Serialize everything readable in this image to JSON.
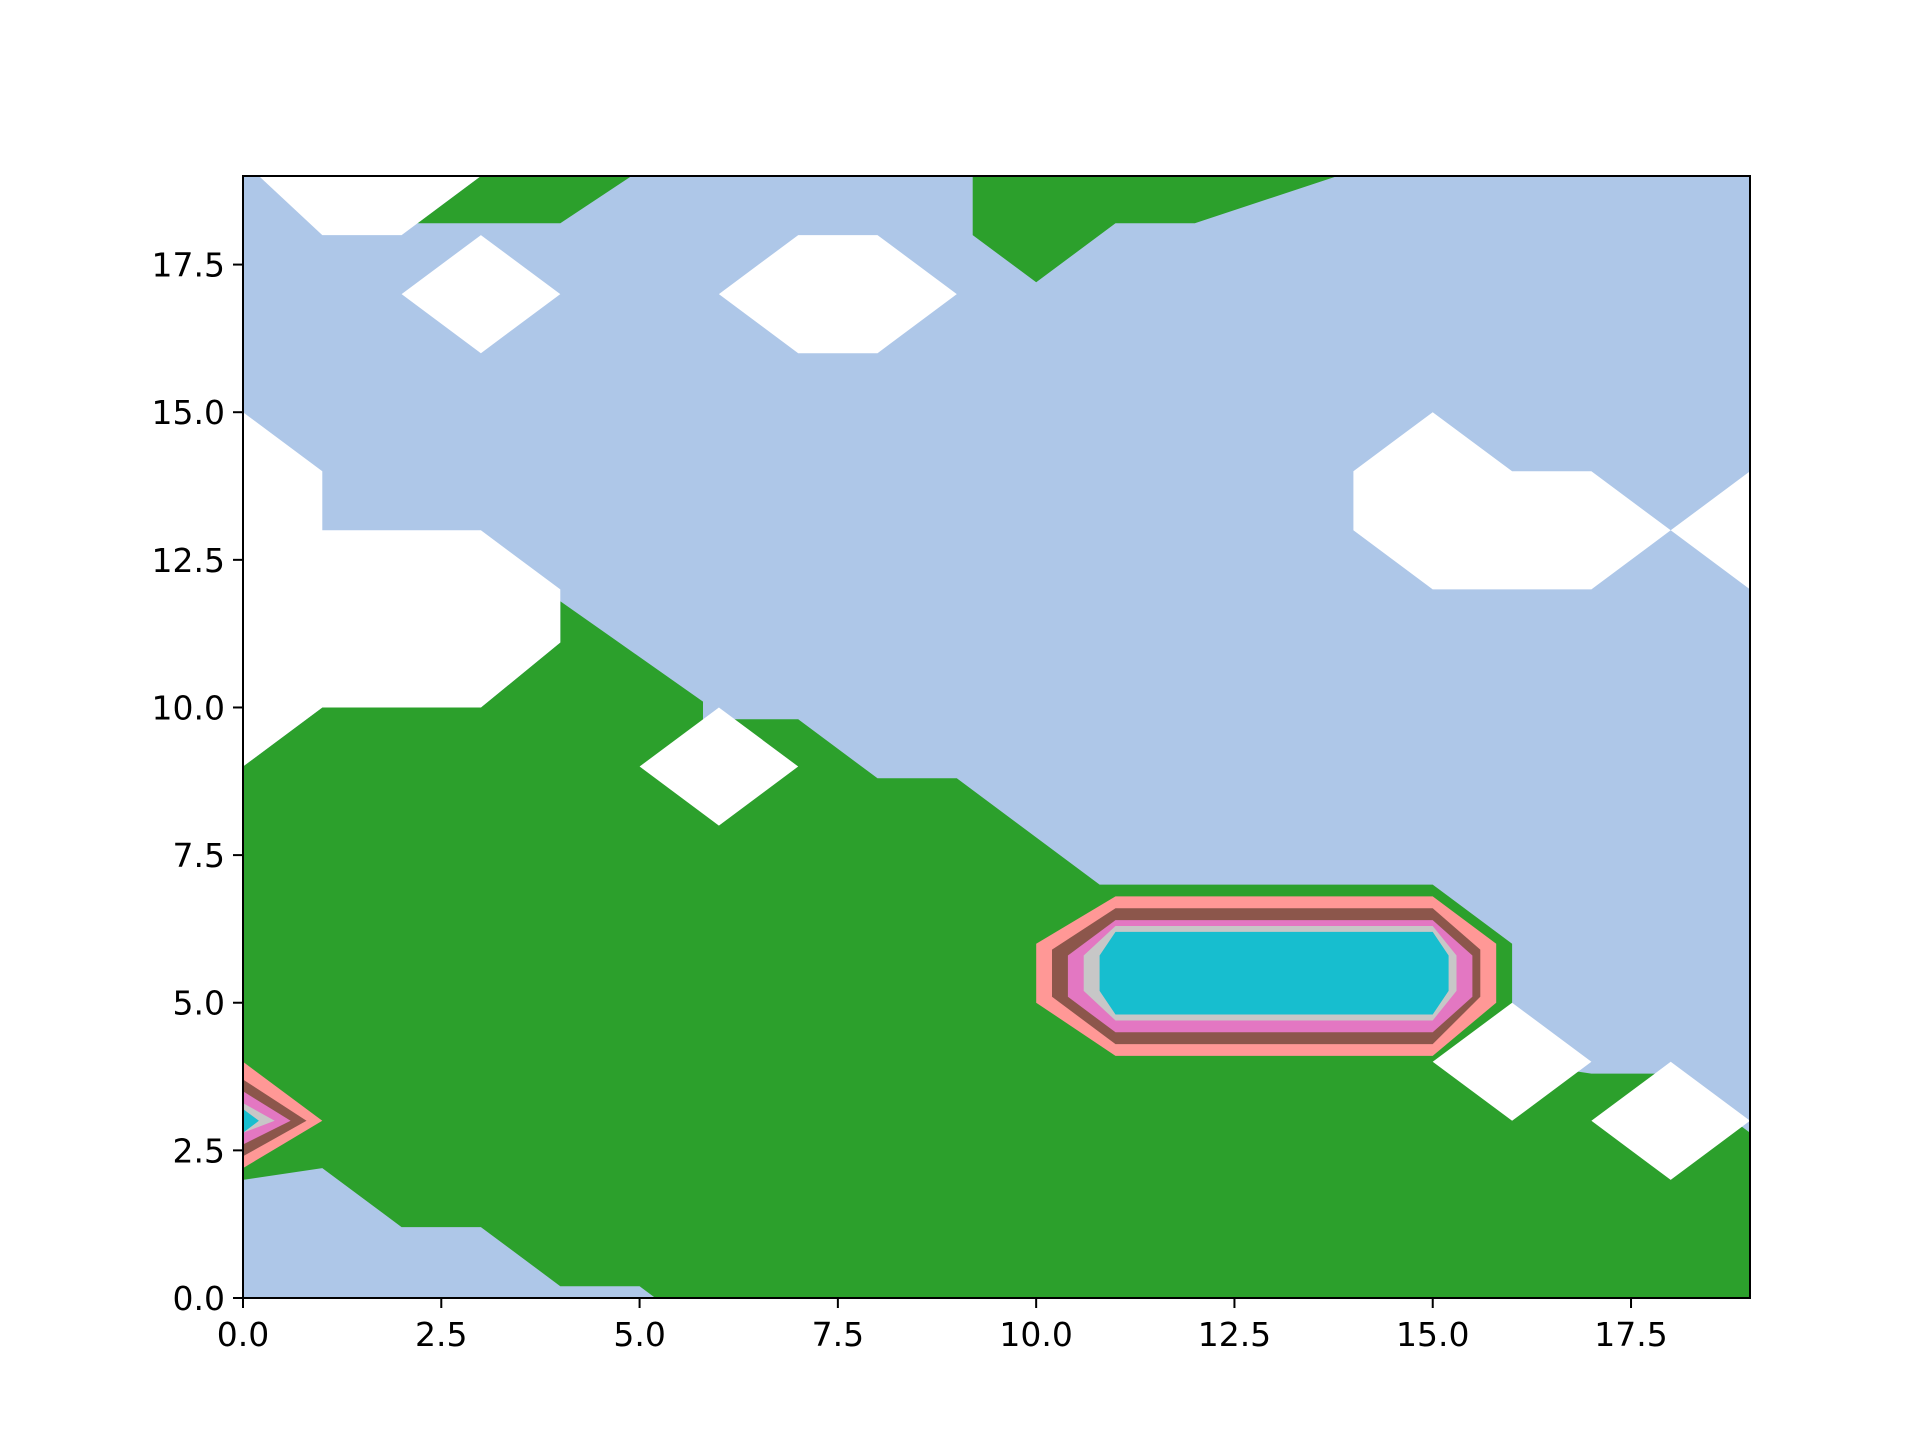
{
  "chart_data": {
    "type": "contourf",
    "title": "",
    "xlabel": "",
    "ylabel": "",
    "xlim": [
      0,
      19
    ],
    "ylim": [
      0,
      19
    ],
    "x_ticks": [
      0.0,
      2.5,
      5.0,
      7.5,
      10.0,
      12.5,
      15.0,
      17.5
    ],
    "y_ticks": [
      0.0,
      2.5,
      5.0,
      7.5,
      10.0,
      12.5,
      15.0,
      17.5
    ],
    "x_tick_labels": [
      "0.0",
      "2.5",
      "5.0",
      "7.5",
      "10.0",
      "12.5",
      "15.0",
      "17.5"
    ],
    "y_tick_labels": [
      "0.0",
      "2.5",
      "5.0",
      "7.5",
      "10.0",
      "12.5",
      "15.0",
      "17.5"
    ],
    "background_color": "#aec7e8",
    "regions": [
      {
        "color": "#2ca02c",
        "points": [
          [
            0,
            9
          ],
          [
            1,
            10
          ],
          [
            3,
            10
          ],
          [
            4,
            11.1
          ],
          [
            4,
            11.8
          ],
          [
            5.8,
            10.1
          ],
          [
            5.8,
            9.8
          ],
          [
            7,
            9.8
          ],
          [
            8,
            8.8
          ],
          [
            9,
            8.8
          ],
          [
            10.8,
            7.0
          ],
          [
            15,
            7.0
          ],
          [
            16,
            6.0
          ],
          [
            16,
            4.0
          ],
          [
            17,
            3.8
          ],
          [
            18,
            3.8
          ],
          [
            19,
            2.8
          ],
          [
            19,
            0
          ],
          [
            5.2,
            0
          ],
          [
            5,
            0.2
          ],
          [
            4,
            0.2
          ],
          [
            3,
            1.2
          ],
          [
            2,
            1.2
          ],
          [
            1,
            2.2
          ],
          [
            0,
            2
          ]
        ]
      },
      {
        "color": "#2ca02c",
        "points": [
          [
            2.2,
            18.2
          ],
          [
            4,
            18.2
          ],
          [
            4.9,
            19
          ],
          [
            3,
            19
          ]
        ]
      },
      {
        "color": "#2ca02c",
        "points": [
          [
            9.2,
            19
          ],
          [
            9.2,
            18
          ],
          [
            10,
            17.2
          ],
          [
            11,
            18.2
          ],
          [
            12,
            18.2
          ],
          [
            13.8,
            19
          ]
        ]
      },
      {
        "color": "#ffffff",
        "points": [
          [
            0.2,
            19
          ],
          [
            1,
            18
          ],
          [
            2,
            18
          ],
          [
            3,
            19
          ]
        ]
      },
      {
        "color": "#ffffff",
        "points": [
          [
            2,
            17
          ],
          [
            3,
            16
          ],
          [
            4,
            17
          ],
          [
            3,
            18
          ]
        ]
      },
      {
        "color": "#ffffff",
        "points": [
          [
            6,
            17
          ],
          [
            7,
            16
          ],
          [
            8,
            16
          ],
          [
            9,
            17
          ],
          [
            8,
            18
          ],
          [
            7,
            18
          ]
        ]
      },
      {
        "color": "#ffffff",
        "points": [
          [
            0,
            15
          ],
          [
            1,
            14
          ],
          [
            1,
            13
          ],
          [
            3,
            13
          ],
          [
            4,
            12
          ],
          [
            4,
            11.1
          ],
          [
            3,
            10
          ],
          [
            1,
            10
          ],
          [
            0,
            9
          ]
        ]
      },
      {
        "color": "#ffffff",
        "points": [
          [
            14,
            14
          ],
          [
            15,
            15
          ],
          [
            16,
            14
          ],
          [
            17,
            14
          ],
          [
            18,
            13
          ],
          [
            17,
            12
          ],
          [
            15,
            12
          ],
          [
            14,
            13
          ]
        ]
      },
      {
        "color": "#ffffff",
        "points": [
          [
            18,
            13
          ],
          [
            19,
            14
          ],
          [
            19,
            12
          ]
        ]
      },
      {
        "color": "#ffffff",
        "points": [
          [
            5,
            9
          ],
          [
            6,
            10
          ],
          [
            7,
            9
          ],
          [
            6,
            8
          ]
        ]
      },
      {
        "color": "#ffffff",
        "points": [
          [
            15,
            4
          ],
          [
            16,
            5
          ],
          [
            17,
            4
          ],
          [
            16,
            3
          ]
        ]
      },
      {
        "color": "#ffffff",
        "points": [
          [
            17,
            3
          ],
          [
            18,
            4
          ],
          [
            19,
            3
          ],
          [
            18,
            2
          ]
        ]
      },
      {
        "color": "#ff9896",
        "points": [
          [
            10,
            6
          ],
          [
            11,
            6.8
          ],
          [
            15,
            6.8
          ],
          [
            15.8,
            6
          ],
          [
            15.8,
            5
          ],
          [
            15,
            4.1
          ],
          [
            11,
            4.1
          ],
          [
            10,
            5
          ]
        ]
      },
      {
        "color": "#8c564b",
        "points": [
          [
            10.2,
            5.9
          ],
          [
            11,
            6.6
          ],
          [
            15,
            6.6
          ],
          [
            15.6,
            5.9
          ],
          [
            15.6,
            5.1
          ],
          [
            15,
            4.3
          ],
          [
            11,
            4.3
          ],
          [
            10.2,
            5.1
          ]
        ]
      },
      {
        "color": "#e377c2",
        "points": [
          [
            10.4,
            5.8
          ],
          [
            11,
            6.4
          ],
          [
            15,
            6.4
          ],
          [
            15.5,
            5.8
          ],
          [
            15.5,
            5.1
          ],
          [
            15,
            4.5
          ],
          [
            11,
            4.5
          ],
          [
            10.4,
            5.1
          ]
        ]
      },
      {
        "color": "#c7c7c7",
        "points": [
          [
            10.6,
            5.8
          ],
          [
            11,
            6.3
          ],
          [
            15,
            6.3
          ],
          [
            15.3,
            5.8
          ],
          [
            15.3,
            5.2
          ],
          [
            15,
            4.7
          ],
          [
            11,
            4.7
          ],
          [
            10.6,
            5.2
          ]
        ]
      },
      {
        "color": "#17becf",
        "points": [
          [
            10.8,
            5.8
          ],
          [
            11,
            6.2
          ],
          [
            15,
            6.2
          ],
          [
            15.2,
            5.8
          ],
          [
            15.2,
            5.2
          ],
          [
            15,
            4.8
          ],
          [
            11,
            4.8
          ],
          [
            10.8,
            5.2
          ]
        ]
      },
      {
        "color": "#ff9896",
        "points": [
          [
            0,
            4
          ],
          [
            1,
            3
          ],
          [
            0,
            2.2
          ]
        ]
      },
      {
        "color": "#8c564b",
        "points": [
          [
            0,
            3.7
          ],
          [
            0.8,
            3
          ],
          [
            0,
            2.4
          ]
        ]
      },
      {
        "color": "#e377c2",
        "points": [
          [
            0,
            3.5
          ],
          [
            0.6,
            3
          ],
          [
            0,
            2.6
          ]
        ]
      },
      {
        "color": "#c7c7c7",
        "points": [
          [
            0,
            3.3
          ],
          [
            0.4,
            3
          ],
          [
            0,
            2.8
          ]
        ]
      },
      {
        "color": "#17becf",
        "points": [
          [
            0,
            3.2
          ],
          [
            0.2,
            3
          ],
          [
            0,
            2.8
          ]
        ]
      }
    ]
  }
}
